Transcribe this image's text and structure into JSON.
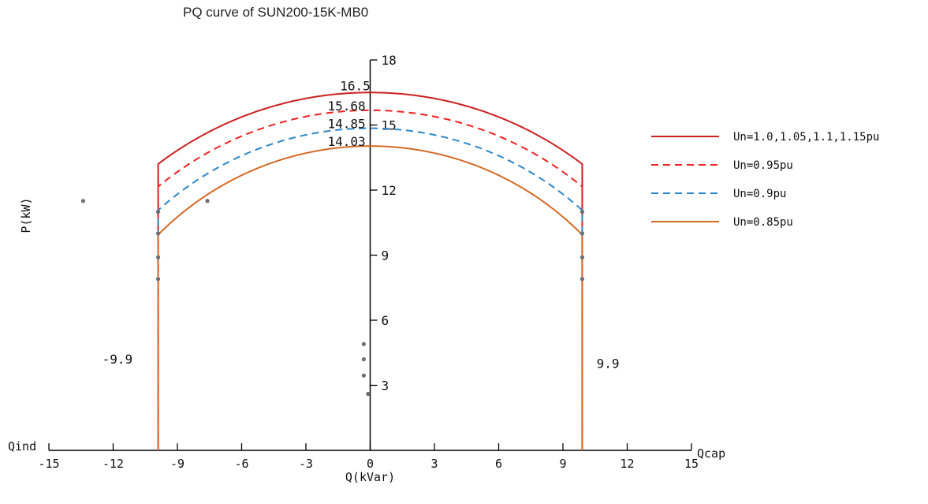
{
  "chart_data": {
    "type": "line",
    "title": "PQ curve of SUN200-15K-MB0",
    "xlabel": "Q(kVar)",
    "ylabel": "P(kW)",
    "x_left_label": "Qind",
    "x_right_label": "Qcap",
    "xlim": [
      -15,
      15
    ],
    "ylim": [
      0,
      18
    ],
    "x_ticks": [
      "-15",
      "-12",
      "-9",
      "-6",
      "-3",
      "0",
      "3",
      "6",
      "9",
      "12",
      "15"
    ],
    "y_ticks": [
      "3",
      "6",
      "9",
      "12",
      "15",
      "18"
    ],
    "q_limit": 9.9,
    "series": [
      {
        "name": "Un=1.0,1.05,1.1,1.15pu",
        "color": "#cc1f1f",
        "dash": "solid",
        "smax": 16.5,
        "p_at_limit": 11.0
      },
      {
        "name": "Un=0.95pu",
        "color": "#ee2222",
        "dash": "dashed",
        "smax": 15.68,
        "p_at_limit": 10.0
      },
      {
        "name": "Un=0.9pu",
        "color": "#2b86c8",
        "dash": "dashed",
        "smax": 14.85,
        "p_at_limit": 8.9
      },
      {
        "name": "Un=0.85pu",
        "color": "#d46a24",
        "dash": "solid",
        "smax": 14.03,
        "p_at_limit": 7.9
      }
    ],
    "annotations": [
      {
        "text": "16.5",
        "x": -0.7,
        "y": 16.6
      },
      {
        "text": "15.68",
        "x": -1.1,
        "y": 15.68
      },
      {
        "text": "14.85",
        "x": -1.1,
        "y": 14.85
      },
      {
        "text": "14.03",
        "x": -1.1,
        "y": 14.03
      },
      {
        "text": "-9.9",
        "x": -11.8,
        "y": 4.0
      },
      {
        "text": "9.9",
        "x": 11.1,
        "y": 3.8
      }
    ],
    "stray_points": [
      {
        "x": -13.4,
        "y": 11.5
      },
      {
        "x": -7.6,
        "y": 11.5
      },
      {
        "x": -0.3,
        "y": 4.9
      },
      {
        "x": -0.3,
        "y": 4.2
      },
      {
        "x": -0.3,
        "y": 3.45
      },
      {
        "x": -0.1,
        "y": 2.6
      }
    ],
    "grid": false,
    "legend_position": "right"
  }
}
